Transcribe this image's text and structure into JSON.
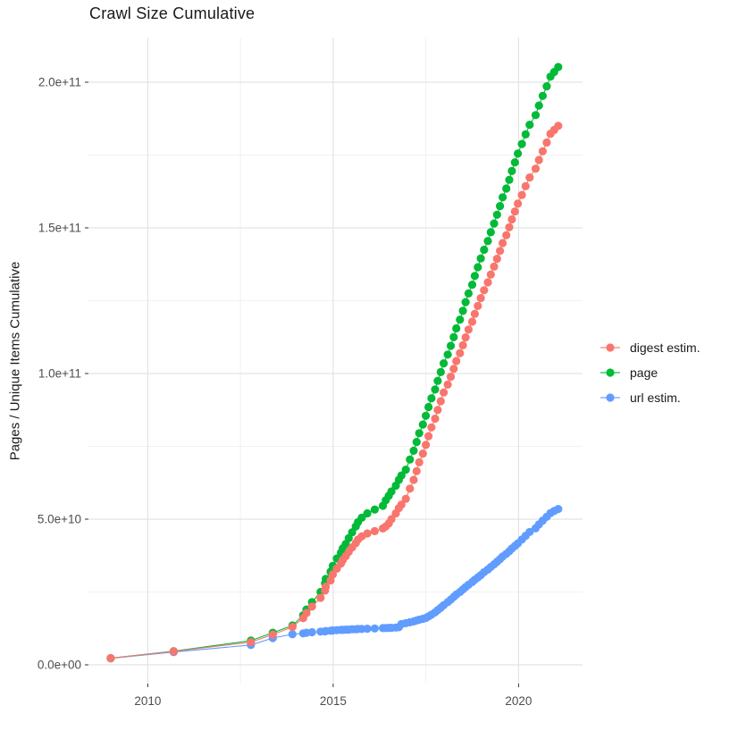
{
  "title": "Crawl Size Cumulative",
  "y_axis_title": "Pages / Unique Items Cumulative",
  "legend": [
    {
      "label": "digest estim.",
      "color": "#F8766D"
    },
    {
      "label": "page",
      "color": "#00BA38"
    },
    {
      "label": "url estim.",
      "color": "#619CFF"
    }
  ],
  "colors": {
    "background": "#ffffff",
    "grid_major": "#e3e3e3",
    "grid_minor": "#f1f1f1",
    "tick_mark": "#333333",
    "tick_label": "#4d4d4d",
    "title_text": "#1a1a1a"
  },
  "chart_data": {
    "type": "line",
    "title": "Crawl Size Cumulative",
    "xlabel": "",
    "ylabel": "Pages / Unique Items Cumulative",
    "grid": true,
    "legend_position": "right",
    "marker": "point",
    "values_unit": "1e9",
    "x_axis_tick_labels": [
      "2010",
      "2015",
      "2020"
    ],
    "y_axis_tick_labels": [
      "0.0e+00",
      "5.0e+10",
      "1.0e+11",
      "1.5e+11",
      "2.0e+11"
    ],
    "x_tick_years": [
      2010,
      2015,
      2020
    ],
    "y_tick_values_billions": [
      0,
      50,
      100,
      150,
      200
    ],
    "minor_x_tick_years": [
      2012.5,
      2017.5
    ],
    "minor_y_tick_values_billions": [
      25,
      75,
      125,
      175
    ],
    "x_range_years": [
      2008.4,
      2021.73
    ],
    "y_range_billions": [
      -6.4,
      215.3
    ],
    "x_years": [
      2009.0,
      2010.7,
      2012.78,
      2013.37,
      2013.9,
      2014.19,
      2014.28,
      2014.43,
      2014.66,
      2014.78,
      2014.8,
      2014.93,
      2014.99,
      2015.1,
      2015.21,
      2015.26,
      2015.34,
      2015.42,
      2015.51,
      2015.61,
      2015.67,
      2015.77,
      2015.92,
      2016.12,
      2016.34,
      2016.42,
      2016.5,
      2016.57,
      2016.69,
      2016.77,
      2016.84,
      2016.96,
      2017.07,
      2017.17,
      2017.25,
      2017.32,
      2017.42,
      2017.5,
      2017.57,
      2017.65,
      2017.75,
      2017.82,
      2017.9,
      2017.98,
      2018.09,
      2018.17,
      2018.25,
      2018.32,
      2018.42,
      2018.5,
      2018.57,
      2018.65,
      2018.75,
      2018.82,
      2018.9,
      2018.98,
      2019.07,
      2019.17,
      2019.25,
      2019.34,
      2019.42,
      2019.5,
      2019.57,
      2019.67,
      2019.75,
      2019.82,
      2019.9,
      2019.98,
      2020.09,
      2020.19,
      2020.3,
      2020.46,
      2020.55,
      2020.65,
      2020.76,
      2020.86,
      2020.96,
      2021.07
    ],
    "series": [
      {
        "name": "digest estim.",
        "color": "#F8766D",
        "values_billions": [
          2.3,
          4.6,
          7.8,
          10.4,
          13.0,
          16.0,
          17.8,
          20.0,
          23.0,
          25.5,
          26.8,
          29.0,
          31.0,
          33.0,
          34.8,
          36.0,
          37.3,
          38.8,
          40.3,
          41.8,
          43.0,
          44.1,
          45.1,
          45.9,
          46.8,
          47.5,
          48.5,
          50.0,
          52.0,
          53.8,
          55.0,
          57.0,
          60.5,
          63.5,
          66.5,
          69.5,
          72.5,
          75.5,
          78.5,
          81.5,
          84.5,
          87.5,
          90.5,
          93.5,
          96.2,
          98.9,
          101.6,
          104.3,
          107.0,
          109.7,
          112.4,
          115.1,
          117.8,
          120.5,
          123.2,
          125.9,
          128.6,
          131.3,
          134.0,
          136.7,
          139.4,
          142.1,
          144.8,
          147.5,
          150.2,
          152.9,
          155.6,
          158.3,
          161.3,
          164.3,
          167.3,
          170.3,
          173.3,
          176.3,
          179.3,
          182.3,
          183.6,
          185.0
        ]
      },
      {
        "name": "page",
        "color": "#00BA38",
        "values_billions": [
          2.3,
          4.7,
          8.3,
          11.0,
          13.5,
          17.0,
          19.0,
          21.5,
          25.0,
          28.0,
          29.5,
          32.0,
          34.0,
          36.5,
          38.5,
          40.0,
          41.5,
          43.5,
          45.5,
          47.5,
          49.0,
          50.5,
          52.0,
          53.3,
          54.6,
          56.5,
          58.0,
          59.5,
          61.5,
          63.5,
          65.0,
          67.0,
          70.5,
          73.5,
          76.5,
          79.5,
          82.5,
          85.5,
          88.5,
          91.5,
          94.5,
          97.5,
          100.5,
          103.5,
          106.5,
          109.5,
          112.5,
          115.5,
          118.5,
          121.5,
          124.5,
          127.5,
          130.5,
          133.5,
          136.5,
          139.5,
          142.5,
          145.5,
          148.5,
          151.5,
          154.5,
          157.5,
          160.5,
          163.5,
          166.5,
          169.5,
          172.5,
          175.5,
          178.8,
          182.1,
          185.4,
          188.7,
          192.0,
          195.3,
          198.6,
          201.9,
          203.5,
          205.2
        ]
      },
      {
        "name": "url estim.",
        "color": "#619CFF",
        "values_billions": [
          2.2,
          4.4,
          6.8,
          9.2,
          10.5,
          10.8,
          11.0,
          11.2,
          11.4,
          11.5,
          11.6,
          11.7,
          11.8,
          11.9,
          12.0,
          12.0,
          12.1,
          12.1,
          12.2,
          12.2,
          12.3,
          12.3,
          12.4,
          12.5,
          12.6,
          12.6,
          12.7,
          12.7,
          12.8,
          12.9,
          14.0,
          14.3,
          14.6,
          14.9,
          15.2,
          15.5,
          15.8,
          16.1,
          16.6,
          17.2,
          18.0,
          18.8,
          19.6,
          20.5,
          21.5,
          22.4,
          23.3,
          24.1,
          25.0,
          25.9,
          26.7,
          27.5,
          28.4,
          29.2,
          30.0,
          30.8,
          31.8,
          32.7,
          33.6,
          34.5,
          35.4,
          36.3,
          37.2,
          38.1,
          39.0,
          39.9,
          40.8,
          41.7,
          43.0,
          44.3,
          45.6,
          46.9,
          48.2,
          49.5,
          50.8,
          52.1,
          52.8,
          53.5
        ]
      }
    ]
  }
}
